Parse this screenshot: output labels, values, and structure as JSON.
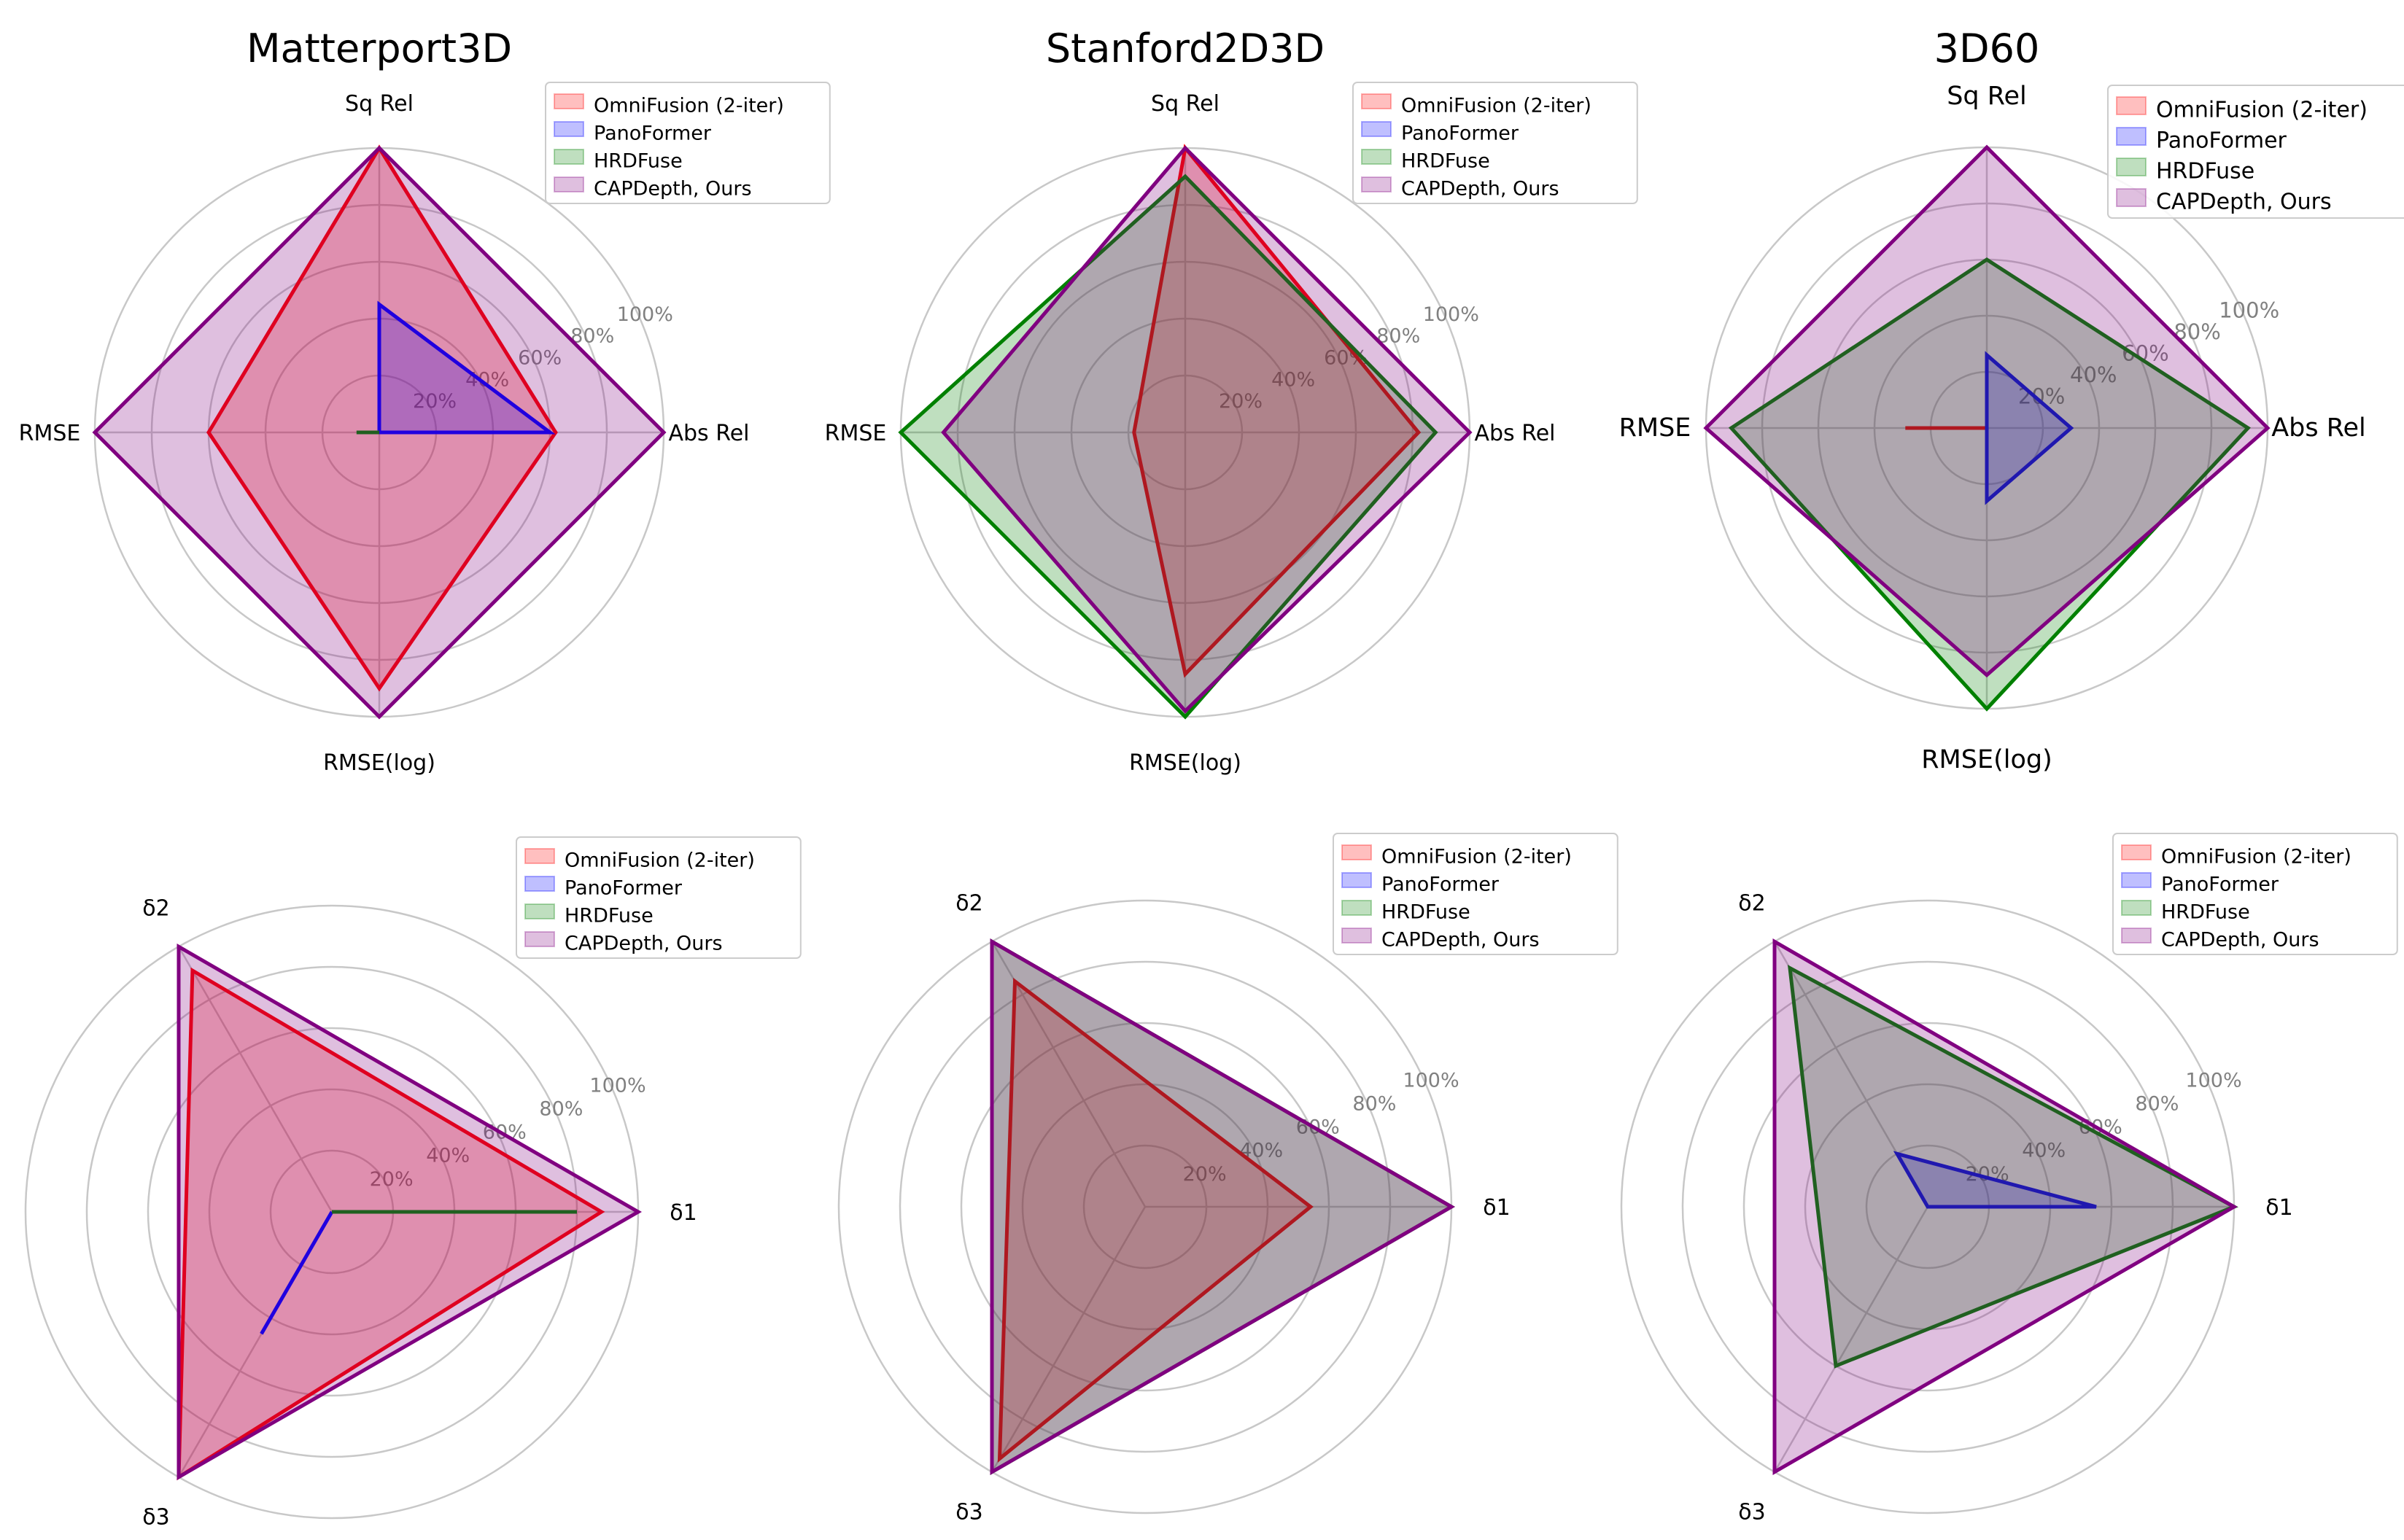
{
  "figure": {
    "series": [
      {
        "name": "OmniFusion (2-iter)",
        "color": "#ff0000",
        "fill": "#ff0000"
      },
      {
        "name": "PanoFormer",
        "color": "#0000ff",
        "fill": "#0000ff"
      },
      {
        "name": "HRDFuse",
        "color": "#008000",
        "fill": "#008000"
      },
      {
        "name": "CAPDepth, Ours",
        "color": "#800080",
        "fill": "#800080"
      }
    ],
    "ring_labels": [
      "20%",
      "40%",
      "60%",
      "80%",
      "100%"
    ]
  },
  "chart_data": [
    {
      "type": "radar",
      "title": "Matterport3D",
      "axes": [
        "Abs Rel",
        "Sq Rel",
        "RMSE",
        "RMSE(log)"
      ],
      "rlim": [
        0,
        100
      ],
      "values": [
        [
          62,
          100,
          60,
          90
        ],
        [
          60,
          45,
          0,
          0
        ],
        [
          0,
          0,
          8,
          0
        ],
        [
          100,
          100,
          100,
          100
        ]
      ]
    },
    {
      "type": "radar",
      "title": "Stanford2D3D",
      "axes": [
        "Abs Rel",
        "Sq Rel",
        "RMSE",
        "RMSE(log)"
      ],
      "rlim": [
        0,
        100
      ],
      "values": [
        [
          82,
          100,
          18,
          85
        ],
        [
          0,
          0,
          0,
          0
        ],
        [
          88,
          90,
          100,
          100
        ],
        [
          100,
          100,
          85,
          98
        ]
      ]
    },
    {
      "type": "radar",
      "title": "3D60",
      "axes": [
        "Abs Rel",
        "Sq Rel",
        "RMSE",
        "RMSE(log)"
      ],
      "rlim": [
        0,
        100
      ],
      "values": [
        [
          0,
          0,
          29,
          0
        ],
        [
          30,
          26,
          0,
          26
        ],
        [
          93,
          60,
          91,
          100
        ],
        [
          100,
          100,
          100,
          88
        ]
      ]
    },
    {
      "type": "radar",
      "title": "",
      "axes": [
        "δ1",
        "δ2",
        "δ3"
      ],
      "rlim": [
        0,
        100
      ],
      "values": [
        [
          88,
          91,
          100
        ],
        [
          0,
          0,
          46
        ],
        [
          80,
          0,
          0
        ],
        [
          100,
          100,
          100
        ]
      ]
    },
    {
      "type": "radar",
      "title": "",
      "axes": [
        "δ1",
        "δ2",
        "δ3"
      ],
      "rlim": [
        0,
        100
      ],
      "values": [
        [
          54,
          85,
          95
        ],
        [
          0,
          0,
          0
        ],
        [
          100,
          100,
          100
        ],
        [
          100,
          100,
          100
        ]
      ]
    },
    {
      "type": "radar",
      "title": "",
      "axes": [
        "δ1",
        "δ2",
        "δ3"
      ],
      "rlim": [
        0,
        100
      ],
      "values": [
        [
          0,
          0,
          0
        ],
        [
          55,
          20,
          0
        ],
        [
          100,
          90,
          60
        ],
        [
          100,
          100,
          100
        ]
      ]
    }
  ]
}
